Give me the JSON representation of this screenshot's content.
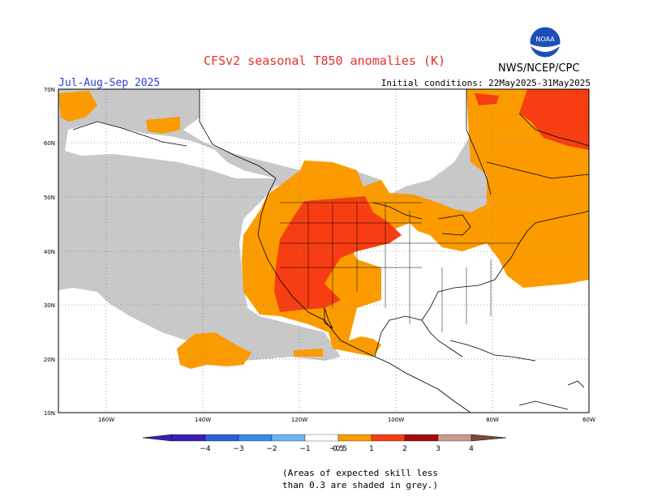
{
  "title": "CFSv2 seasonal T850 anomalies (K)",
  "season": "Jul-Aug-Sep 2025",
  "initial_conditions": "Initial conditions: 22May2025-31May2025",
  "org": "NWS/NCEP/CPC",
  "logo": {
    "text": "NOAA"
  },
  "lat_labels": [
    "70N",
    "60N",
    "50N",
    "40N",
    "30N",
    "20N",
    "10N"
  ],
  "lon_labels": [
    "160W",
    "140W",
    "120W",
    "100W",
    "80W",
    "60W"
  ],
  "colorbar": {
    "labels": [
      "−4",
      "−3",
      "−2",
      "−1",
      "−0.5",
      "0.5",
      "1",
      "2",
      "3",
      "4"
    ],
    "colors": [
      "#3a1fb5",
      "#2c5fd6",
      "#3a8ae8",
      "#6cb2f5",
      "#ffffff",
      "#fb9b00",
      "#f73d12",
      "#a20c0c",
      "#c79a8e",
      "#7a4a3a"
    ]
  },
  "note": [
    "(Areas of expected skill less",
    "than 0.3 are shaded in grey.)"
  ],
  "colors": {
    "grey": "#c8c8c8",
    "orange": "#fb9b00",
    "red": "#f73d12",
    "coast": "#000000",
    "grid": "#888888"
  }
}
